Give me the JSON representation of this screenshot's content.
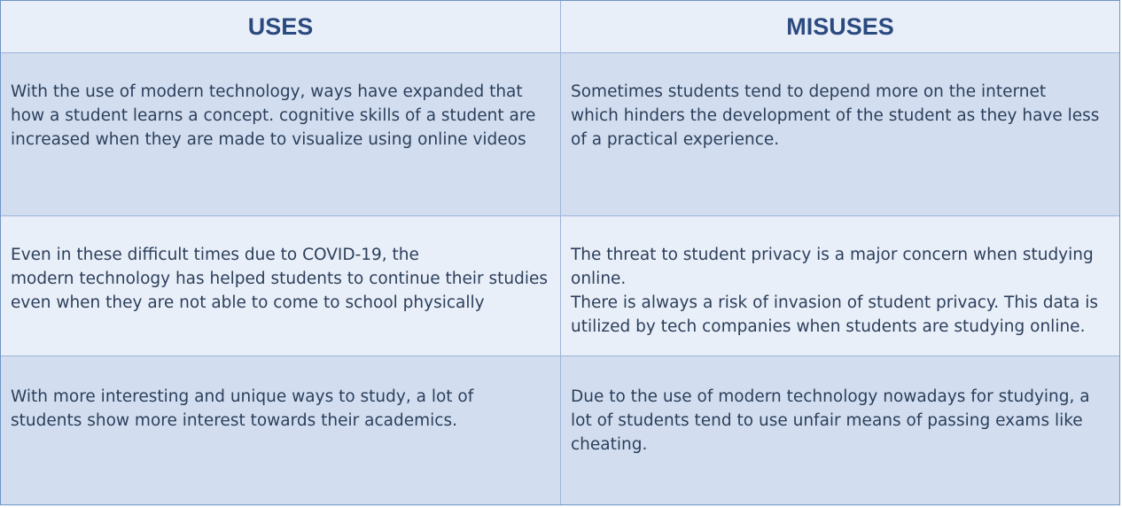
{
  "table": {
    "headers": {
      "uses": "USES",
      "misuses": "MISUSES"
    },
    "rows": [
      {
        "uses": [
          "With the use of modern technology, ways have expanded that",
          "how a student learns a concept. cognitive skills of a student are",
          "increased when they are made to visualize using online videos"
        ],
        "misuses": [
          "Sometimes students tend to depend more on the internet",
          "which hinders the development of the student as they have less",
          "of a practical experience."
        ]
      },
      {
        "uses": [
          "Even in these difficult times due to COVID-19, the",
          "modern technology has helped students to continue their studies",
          "even when they are not able to come to school physically"
        ],
        "misuses": [
          "The threat to student privacy is a major concern when studying",
          "online.",
          "There is always a risk of invasion of student privacy. This data is",
          "utilized by tech companies when students are studying online."
        ]
      },
      {
        "uses": [
          "With more interesting and unique ways to study, a lot of",
          "students show more interest towards their academics."
        ],
        "misuses": [
          "Due to the use of modern technology nowadays for studying, a",
          "lot of students tend to use unfair means of passing exams like",
          "cheating."
        ]
      }
    ]
  }
}
